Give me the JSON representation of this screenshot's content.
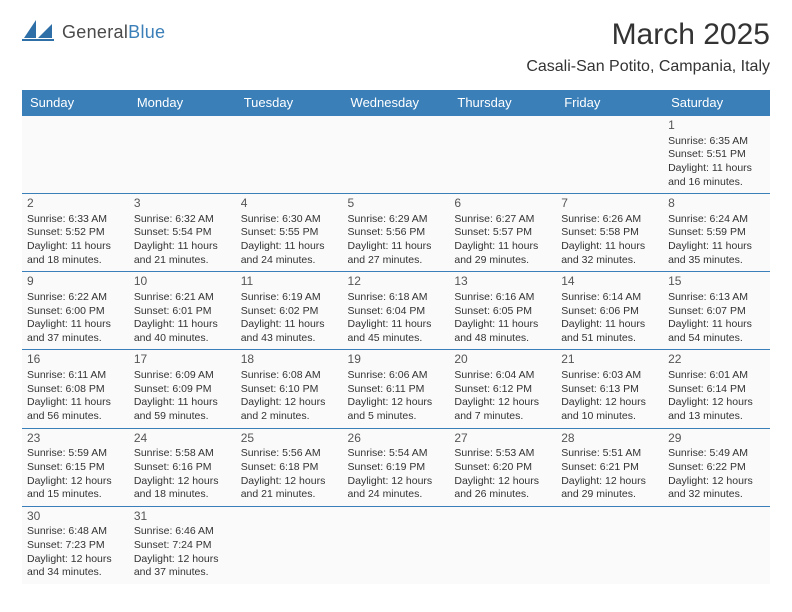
{
  "brand": {
    "name_a": "General",
    "name_b": "Blue"
  },
  "title": "March 2025",
  "location": "Casali-San Potito, Campania, Italy",
  "colors": {
    "header_bg": "#3a7fb8",
    "header_text": "#ffffff",
    "cell_border": "#3a7fb8",
    "cell_bg": "#fafafa",
    "text": "#333333",
    "logo_blue": "#3a7fb8",
    "logo_gray": "#4a4a4a"
  },
  "daysOfWeek": [
    "Sunday",
    "Monday",
    "Tuesday",
    "Wednesday",
    "Thursday",
    "Friday",
    "Saturday"
  ],
  "weeks": [
    [
      null,
      null,
      null,
      null,
      null,
      null,
      {
        "n": "1",
        "sr": "Sunrise: 6:35 AM",
        "ss": "Sunset: 5:51 PM",
        "d1": "Daylight: 11 hours",
        "d2": "and 16 minutes."
      }
    ],
    [
      {
        "n": "2",
        "sr": "Sunrise: 6:33 AM",
        "ss": "Sunset: 5:52 PM",
        "d1": "Daylight: 11 hours",
        "d2": "and 18 minutes."
      },
      {
        "n": "3",
        "sr": "Sunrise: 6:32 AM",
        "ss": "Sunset: 5:54 PM",
        "d1": "Daylight: 11 hours",
        "d2": "and 21 minutes."
      },
      {
        "n": "4",
        "sr": "Sunrise: 6:30 AM",
        "ss": "Sunset: 5:55 PM",
        "d1": "Daylight: 11 hours",
        "d2": "and 24 minutes."
      },
      {
        "n": "5",
        "sr": "Sunrise: 6:29 AM",
        "ss": "Sunset: 5:56 PM",
        "d1": "Daylight: 11 hours",
        "d2": "and 27 minutes."
      },
      {
        "n": "6",
        "sr": "Sunrise: 6:27 AM",
        "ss": "Sunset: 5:57 PM",
        "d1": "Daylight: 11 hours",
        "d2": "and 29 minutes."
      },
      {
        "n": "7",
        "sr": "Sunrise: 6:26 AM",
        "ss": "Sunset: 5:58 PM",
        "d1": "Daylight: 11 hours",
        "d2": "and 32 minutes."
      },
      {
        "n": "8",
        "sr": "Sunrise: 6:24 AM",
        "ss": "Sunset: 5:59 PM",
        "d1": "Daylight: 11 hours",
        "d2": "and 35 minutes."
      }
    ],
    [
      {
        "n": "9",
        "sr": "Sunrise: 6:22 AM",
        "ss": "Sunset: 6:00 PM",
        "d1": "Daylight: 11 hours",
        "d2": "and 37 minutes."
      },
      {
        "n": "10",
        "sr": "Sunrise: 6:21 AM",
        "ss": "Sunset: 6:01 PM",
        "d1": "Daylight: 11 hours",
        "d2": "and 40 minutes."
      },
      {
        "n": "11",
        "sr": "Sunrise: 6:19 AM",
        "ss": "Sunset: 6:02 PM",
        "d1": "Daylight: 11 hours",
        "d2": "and 43 minutes."
      },
      {
        "n": "12",
        "sr": "Sunrise: 6:18 AM",
        "ss": "Sunset: 6:04 PM",
        "d1": "Daylight: 11 hours",
        "d2": "and 45 minutes."
      },
      {
        "n": "13",
        "sr": "Sunrise: 6:16 AM",
        "ss": "Sunset: 6:05 PM",
        "d1": "Daylight: 11 hours",
        "d2": "and 48 minutes."
      },
      {
        "n": "14",
        "sr": "Sunrise: 6:14 AM",
        "ss": "Sunset: 6:06 PM",
        "d1": "Daylight: 11 hours",
        "d2": "and 51 minutes."
      },
      {
        "n": "15",
        "sr": "Sunrise: 6:13 AM",
        "ss": "Sunset: 6:07 PM",
        "d1": "Daylight: 11 hours",
        "d2": "and 54 minutes."
      }
    ],
    [
      {
        "n": "16",
        "sr": "Sunrise: 6:11 AM",
        "ss": "Sunset: 6:08 PM",
        "d1": "Daylight: 11 hours",
        "d2": "and 56 minutes."
      },
      {
        "n": "17",
        "sr": "Sunrise: 6:09 AM",
        "ss": "Sunset: 6:09 PM",
        "d1": "Daylight: 11 hours",
        "d2": "and 59 minutes."
      },
      {
        "n": "18",
        "sr": "Sunrise: 6:08 AM",
        "ss": "Sunset: 6:10 PM",
        "d1": "Daylight: 12 hours",
        "d2": "and 2 minutes."
      },
      {
        "n": "19",
        "sr": "Sunrise: 6:06 AM",
        "ss": "Sunset: 6:11 PM",
        "d1": "Daylight: 12 hours",
        "d2": "and 5 minutes."
      },
      {
        "n": "20",
        "sr": "Sunrise: 6:04 AM",
        "ss": "Sunset: 6:12 PM",
        "d1": "Daylight: 12 hours",
        "d2": "and 7 minutes."
      },
      {
        "n": "21",
        "sr": "Sunrise: 6:03 AM",
        "ss": "Sunset: 6:13 PM",
        "d1": "Daylight: 12 hours",
        "d2": "and 10 minutes."
      },
      {
        "n": "22",
        "sr": "Sunrise: 6:01 AM",
        "ss": "Sunset: 6:14 PM",
        "d1": "Daylight: 12 hours",
        "d2": "and 13 minutes."
      }
    ],
    [
      {
        "n": "23",
        "sr": "Sunrise: 5:59 AM",
        "ss": "Sunset: 6:15 PM",
        "d1": "Daylight: 12 hours",
        "d2": "and 15 minutes."
      },
      {
        "n": "24",
        "sr": "Sunrise: 5:58 AM",
        "ss": "Sunset: 6:16 PM",
        "d1": "Daylight: 12 hours",
        "d2": "and 18 minutes."
      },
      {
        "n": "25",
        "sr": "Sunrise: 5:56 AM",
        "ss": "Sunset: 6:18 PM",
        "d1": "Daylight: 12 hours",
        "d2": "and 21 minutes."
      },
      {
        "n": "26",
        "sr": "Sunrise: 5:54 AM",
        "ss": "Sunset: 6:19 PM",
        "d1": "Daylight: 12 hours",
        "d2": "and 24 minutes."
      },
      {
        "n": "27",
        "sr": "Sunrise: 5:53 AM",
        "ss": "Sunset: 6:20 PM",
        "d1": "Daylight: 12 hours",
        "d2": "and 26 minutes."
      },
      {
        "n": "28",
        "sr": "Sunrise: 5:51 AM",
        "ss": "Sunset: 6:21 PM",
        "d1": "Daylight: 12 hours",
        "d2": "and 29 minutes."
      },
      {
        "n": "29",
        "sr": "Sunrise: 5:49 AM",
        "ss": "Sunset: 6:22 PM",
        "d1": "Daylight: 12 hours",
        "d2": "and 32 minutes."
      }
    ],
    [
      {
        "n": "30",
        "sr": "Sunrise: 6:48 AM",
        "ss": "Sunset: 7:23 PM",
        "d1": "Daylight: 12 hours",
        "d2": "and 34 minutes."
      },
      {
        "n": "31",
        "sr": "Sunrise: 6:46 AM",
        "ss": "Sunset: 7:24 PM",
        "d1": "Daylight: 12 hours",
        "d2": "and 37 minutes."
      },
      null,
      null,
      null,
      null,
      null
    ]
  ]
}
